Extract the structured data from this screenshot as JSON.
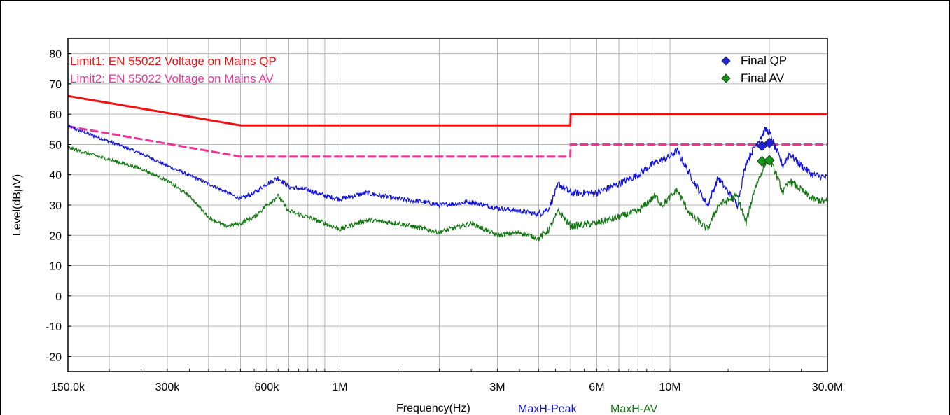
{
  "chart_data": {
    "type": "line",
    "xscale": "log",
    "xlim": [
      150000,
      30000000
    ],
    "ylim": [
      -25,
      85
    ],
    "grid": true,
    "xlabel": "Frequency(Hz)",
    "ylabel": "Level(dBµV)",
    "x_ticks": [
      {
        "value": 150000,
        "label": "150.0k"
      },
      {
        "value": 300000,
        "label": "300k"
      },
      {
        "value": 600000,
        "label": "600k"
      },
      {
        "value": 1000000,
        "label": "1M"
      },
      {
        "value": 3000000,
        "label": "3M"
      },
      {
        "value": 6000000,
        "label": "6M"
      },
      {
        "value": 10000000,
        "label": "10M"
      },
      {
        "value": 30000000,
        "label": "30.0M"
      }
    ],
    "y_ticks": [
      {
        "value": 80,
        "label": "80"
      },
      {
        "value": 70,
        "label": "70"
      },
      {
        "value": 60,
        "label": "60"
      },
      {
        "value": 50,
        "label": "50"
      },
      {
        "value": 40,
        "label": "40"
      },
      {
        "value": 30,
        "label": "30"
      },
      {
        "value": 20,
        "label": "20"
      },
      {
        "value": 10,
        "label": "10"
      },
      {
        "value": 0,
        "label": "0"
      },
      {
        "value": -10,
        "label": "-10"
      },
      {
        "value": -20,
        "label": "-20"
      }
    ],
    "limits": [
      {
        "name": "Limit1:  EN 55022 Voltage on Mains QP",
        "color": "#ee1111",
        "style": "solid",
        "points": [
          [
            150000,
            66
          ],
          [
            500000,
            56.3
          ],
          [
            4990000,
            56.3
          ],
          [
            5000000,
            60
          ],
          [
            30000000,
            60
          ]
        ]
      },
      {
        "name": "Limit2:  EN 55022 Voltage on Mains AV",
        "color": "#ee3399",
        "style": "dashed",
        "points": [
          [
            150000,
            56
          ],
          [
            500000,
            46
          ],
          [
            4990000,
            46
          ],
          [
            5000000,
            50
          ],
          [
            30000000,
            50
          ]
        ]
      }
    ],
    "series": [
      {
        "name": "MaxH-Peak",
        "color": "#1111dd",
        "x": [
          150000,
          200000,
          250000,
          300000,
          400000,
          500000,
          550000,
          600000,
          650000,
          700000,
          800000,
          900000,
          1000000,
          1200000,
          1500000,
          1800000,
          2000000,
          2500000,
          3000000,
          3500000,
          4000000,
          4300000,
          4600000,
          5000000,
          6000000,
          7000000,
          8000000,
          9000000,
          10000000,
          10500000,
          11500000,
          13000000,
          14000000,
          16000000,
          17000000,
          18000000,
          19500000,
          20000000,
          21000000,
          22000000,
          23000000,
          25000000,
          27000000,
          30000000
        ],
        "y": [
          56,
          51,
          47,
          43,
          37,
          32,
          34,
          37,
          39,
          36,
          35,
          33,
          32,
          34,
          32,
          31,
          30,
          31,
          29,
          28,
          27,
          29,
          37,
          34,
          34,
          37,
          40,
          44,
          46,
          48,
          40,
          30,
          39,
          30,
          44,
          49,
          55,
          54,
          48,
          43,
          47,
          43,
          40,
          39
        ]
      },
      {
        "name": "MaxH-AV",
        "color": "#117711",
        "x": [
          150000,
          200000,
          250000,
          300000,
          350000,
          400000,
          450000,
          500000,
          550000,
          600000,
          650000,
          700000,
          800000,
          900000,
          1000000,
          1200000,
          1500000,
          2000000,
          2500000,
          3000000,
          3500000,
          4000000,
          4300000,
          4600000,
          5000000,
          6000000,
          7000000,
          8000000,
          9000000,
          9500000,
          10500000,
          11500000,
          13000000,
          14000000,
          16000000,
          17000000,
          18000000,
          19500000,
          20000000,
          21000000,
          22000000,
          23000000,
          25000000,
          27000000,
          30000000
        ],
        "y": [
          49,
          45,
          42,
          38,
          33,
          26,
          23,
          24,
          26,
          30,
          33,
          28,
          26,
          24,
          22,
          25,
          24,
          21,
          24,
          20,
          21,
          19,
          22,
          28,
          23,
          24,
          26,
          28,
          33,
          30,
          35,
          27,
          22,
          30,
          33,
          24,
          35,
          44,
          45,
          40,
          34,
          38,
          35,
          32,
          31
        ]
      }
    ],
    "finals": [
      {
        "name": "Final QP",
        "color": "#2222dd",
        "points": [
          [
            19000000,
            49.5
          ],
          [
            20000000,
            50.5
          ]
        ]
      },
      {
        "name": "Final AV",
        "color": "#119911",
        "points": [
          [
            19000000,
            44.5
          ],
          [
            20000000,
            44.8
          ]
        ]
      }
    ]
  }
}
